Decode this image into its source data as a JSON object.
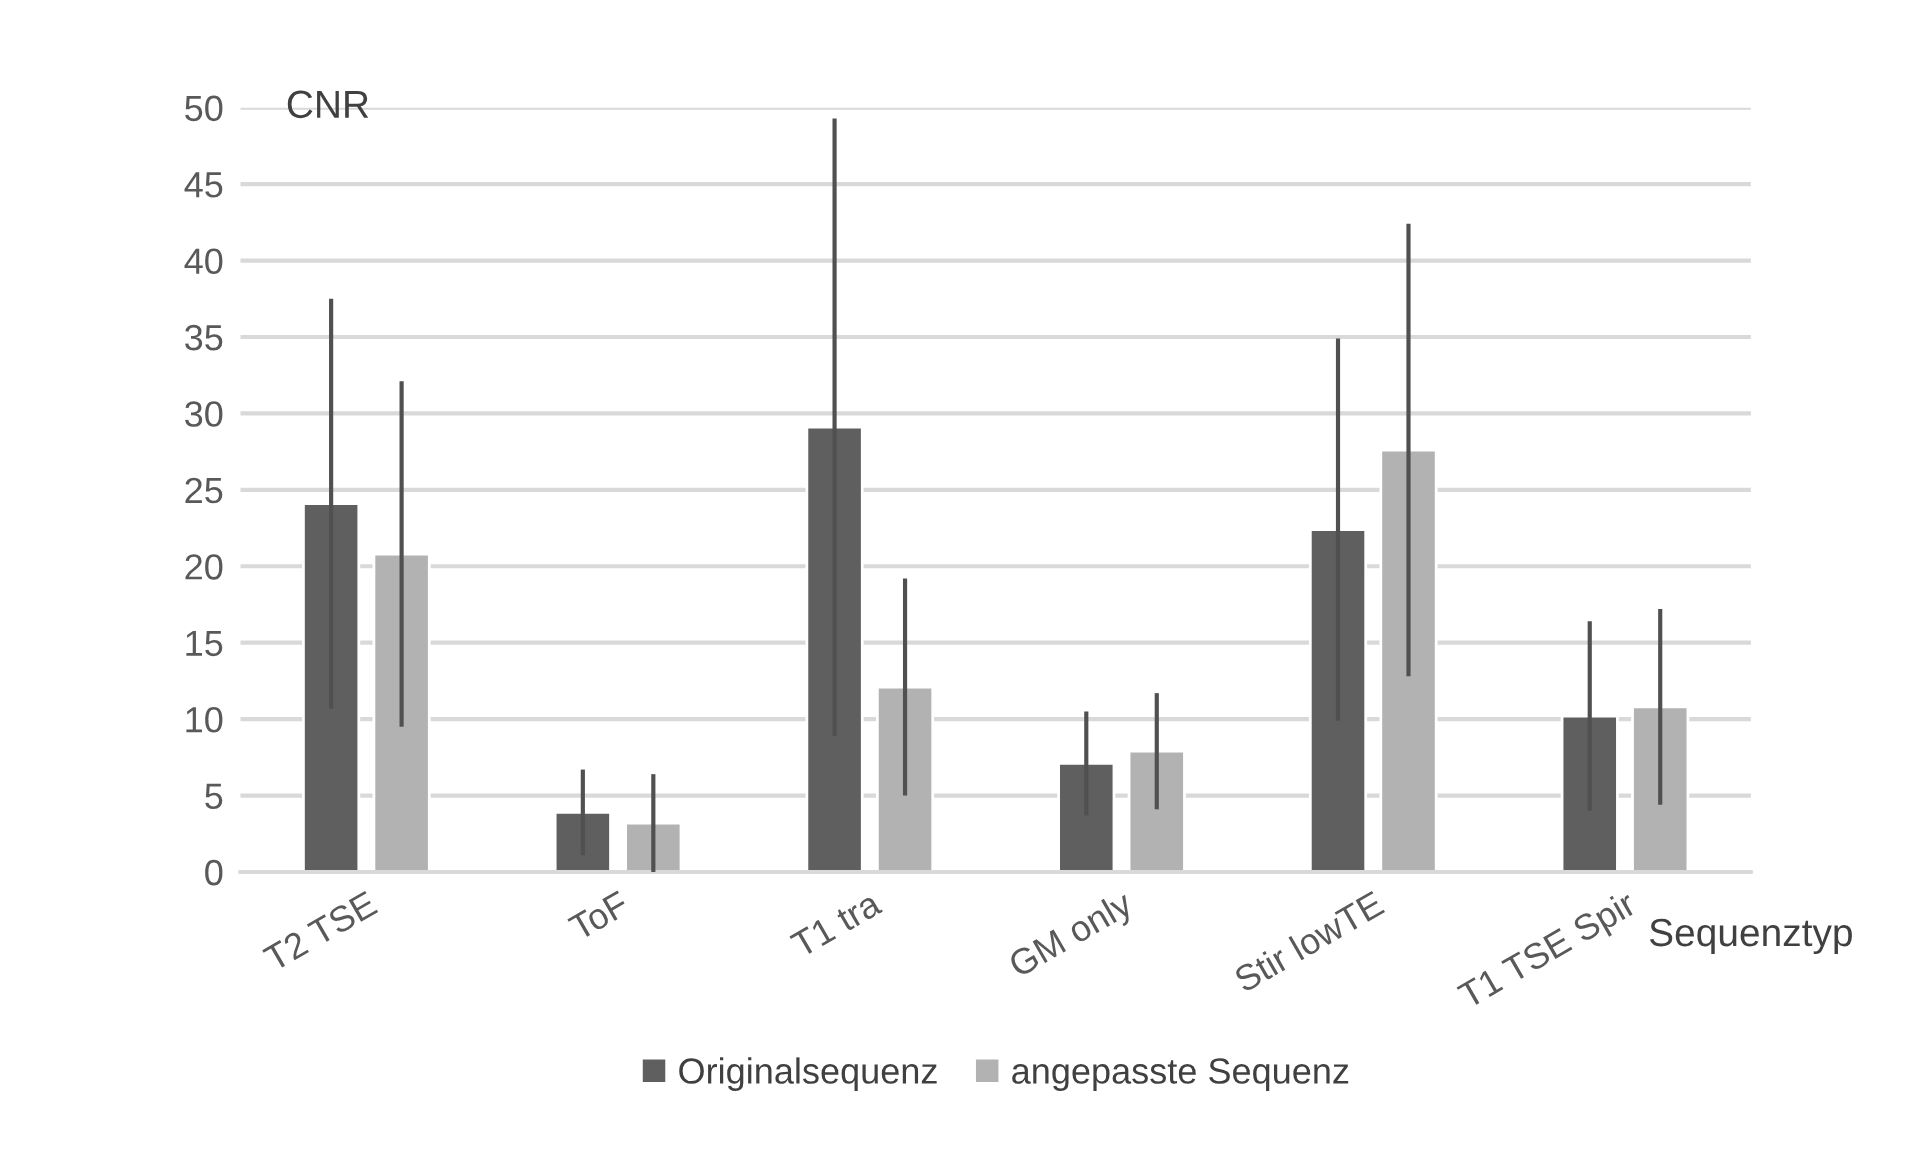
{
  "chart_data": {
    "type": "bar",
    "ylabel": "CNR",
    "xlabel": "Sequenztyp",
    "categories": [
      "T2 TSE",
      "ToF",
      "T1 tra",
      "GM only",
      "Stir lowTE",
      "T1 TSE Spir"
    ],
    "series": [
      {
        "name": "Originalsequenz",
        "color": "#5f5f5f",
        "values": [
          24.1,
          3.9,
          29.1,
          7.1,
          22.4,
          10.2
        ],
        "errors": [
          13.4,
          2.8,
          20.2,
          3.4,
          12.5,
          6.2
        ]
      },
      {
        "name": "angepasste Sequenz",
        "color": "#b2b2b2",
        "values": [
          20.8,
          3.2,
          12.1,
          7.9,
          27.6,
          10.8
        ],
        "errors": [
          11.3,
          3.2,
          7.1,
          3.8,
          14.8,
          6.4
        ]
      }
    ],
    "ylim": [
      0,
      50
    ],
    "yticks": [
      0,
      5,
      10,
      15,
      20,
      25,
      30,
      35,
      40,
      45,
      50
    ],
    "grid": "y",
    "legend": "bottom"
  }
}
